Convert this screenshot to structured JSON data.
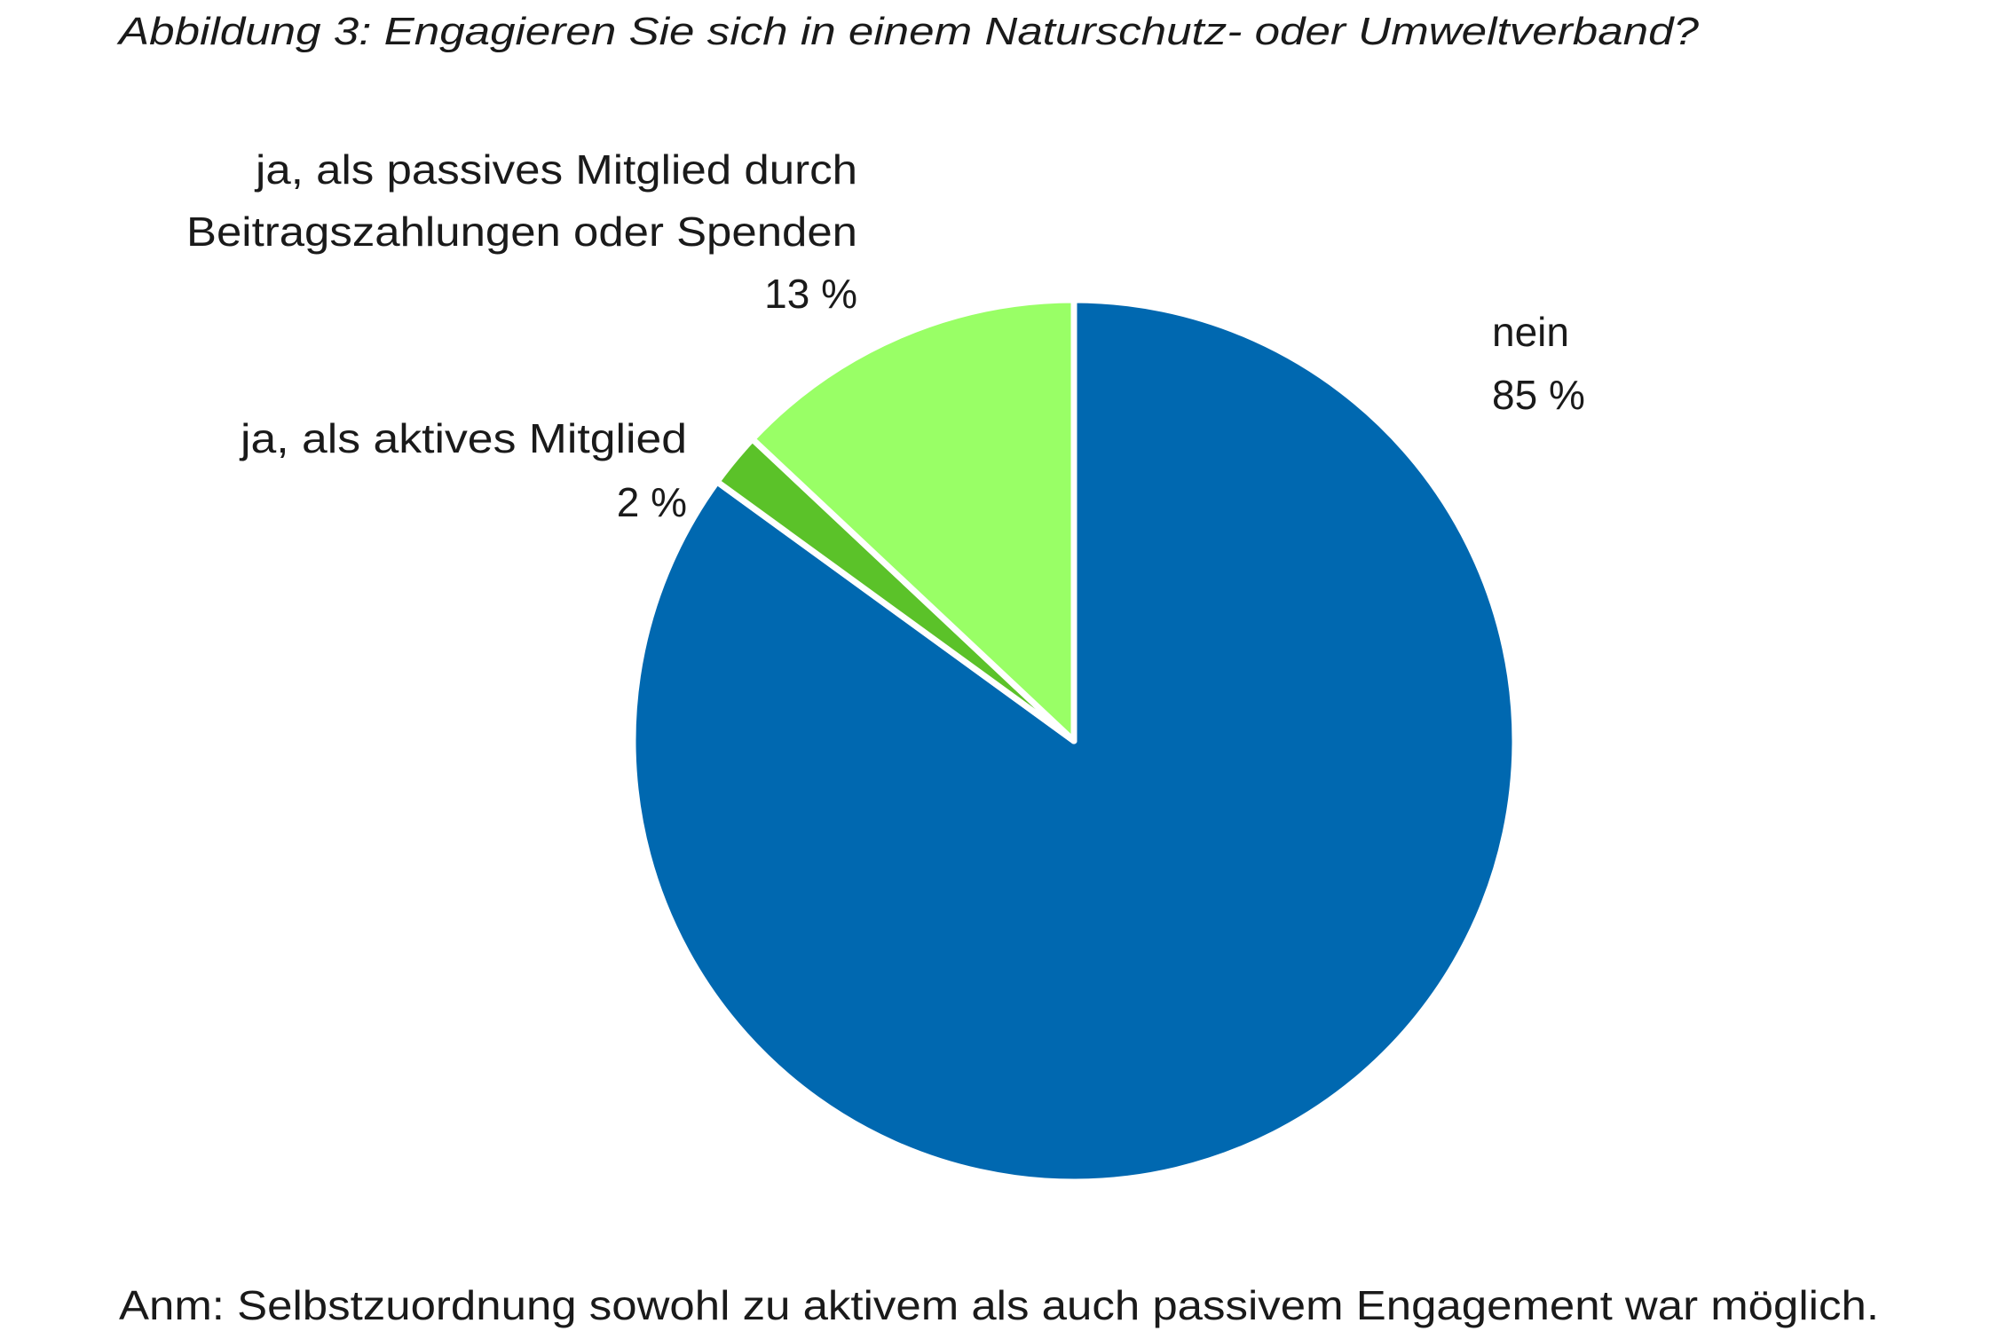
{
  "chart_data": {
    "type": "pie",
    "title": "Abbildung 3: Engagieren Sie sich in einem Naturschutz- oder Umweltverband?",
    "note": "Anm: Selbstzuordnung sowohl zu aktivem als auch passivem Engagement war möglich.",
    "start": "top",
    "direction": "clockwise",
    "slices": [
      {
        "label": "nein",
        "value": 85,
        "value_label": "85 %",
        "color": "#0068B0"
      },
      {
        "label": "ja, als aktives Mitglied",
        "value": 2,
        "value_label": "2 %",
        "color": "#5BC229"
      },
      {
        "label_lines": [
          "ja, als passives Mitglied durch",
          "Beitragszahlungen oder Spenden"
        ],
        "value": 13,
        "value_label": "13 %",
        "color": "#99FF66"
      }
    ]
  }
}
